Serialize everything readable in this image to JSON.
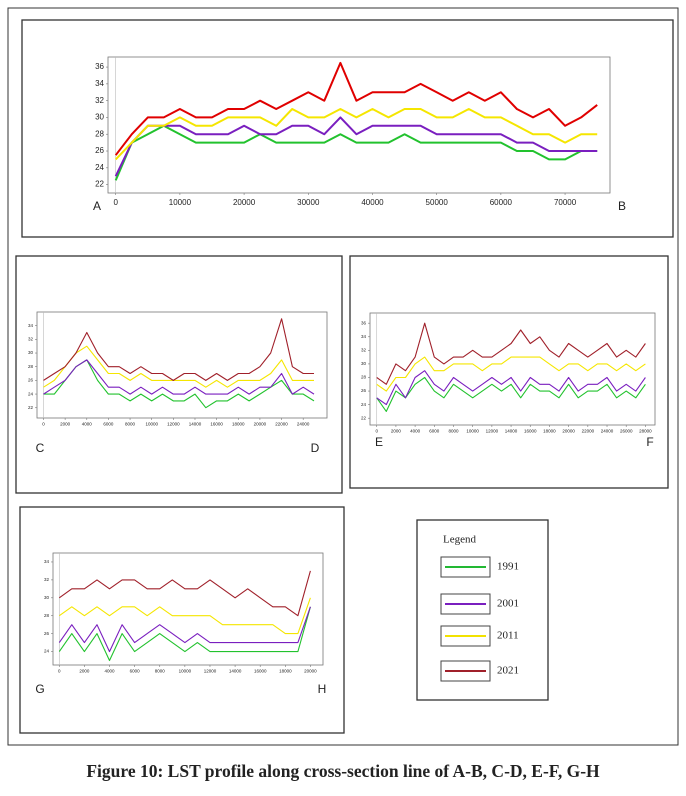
{
  "caption": "Figure 10: LST profile along cross-section line of A-B, C-D, E-F, G-H",
  "legend": {
    "title": "Legend",
    "items": [
      {
        "name": "1991",
        "color": "#22b833"
      },
      {
        "name": "2001",
        "color": "#7a1fbf"
      },
      {
        "name": "2011",
        "color": "#f2e200"
      },
      {
        "name": "2021",
        "color": "#a0202a"
      }
    ]
  },
  "chart_data": [
    {
      "type": "line",
      "start_label": "A",
      "end_label": "B",
      "x": [
        0,
        2500,
        5000,
        7500,
        10000,
        12500,
        15000,
        17500,
        20000,
        22500,
        25000,
        27500,
        30000,
        32500,
        35000,
        37500,
        40000,
        42500,
        45000,
        47500,
        50000,
        52500,
        55000,
        57500,
        60000,
        62500,
        65000,
        67500,
        70000,
        72500,
        75000
      ],
      "xlim": [
        -1200,
        77000
      ],
      "xticks": [
        0,
        10000,
        20000,
        30000,
        40000,
        50000,
        60000,
        70000
      ],
      "ylim": [
        21,
        37.2
      ],
      "yticks": [
        22,
        24,
        26,
        28,
        30,
        32,
        34,
        36
      ],
      "series": [
        {
          "color": "#22c22e",
          "values": [
            22.5,
            27,
            28,
            29,
            28,
            27,
            27,
            27,
            27,
            28,
            27,
            27,
            27,
            27,
            28,
            27,
            27,
            27,
            28,
            27,
            27,
            27,
            27,
            27,
            27,
            26,
            26,
            25,
            25,
            26,
            26
          ]
        },
        {
          "color": "#7a1fbf",
          "values": [
            23,
            27,
            29,
            29,
            29,
            28,
            28,
            28,
            29,
            28,
            28,
            29,
            29,
            28,
            30,
            28,
            29,
            29,
            29,
            29,
            28,
            28,
            28,
            28,
            28,
            27,
            27,
            26,
            26,
            26,
            26
          ]
        },
        {
          "color": "#f5e600",
          "values": [
            25,
            27,
            29,
            29,
            30,
            29,
            29,
            30,
            30,
            30,
            29,
            31,
            30,
            30,
            31,
            30,
            31,
            30,
            31,
            31,
            30,
            30,
            31,
            30,
            30,
            29,
            28,
            28,
            27,
            28,
            28
          ]
        },
        {
          "color": "#e00000",
          "values": [
            25.5,
            28,
            30,
            30,
            31,
            30,
            30,
            31,
            31,
            32,
            31,
            32,
            33,
            32,
            36.5,
            32,
            33,
            33,
            33,
            34,
            33,
            32,
            33,
            32,
            33,
            31,
            30,
            31,
            29,
            30,
            31.5
          ]
        }
      ]
    },
    {
      "type": "line",
      "start_label": "C",
      "end_label": "D",
      "x": [
        0,
        1000,
        2000,
        3000,
        4000,
        5000,
        6000,
        7000,
        8000,
        9000,
        10000,
        11000,
        12000,
        13000,
        14000,
        15000,
        16000,
        17000,
        18000,
        19000,
        20000,
        21000,
        22000,
        23000,
        24000,
        25000
      ],
      "xlim": [
        -600,
        26200
      ],
      "xticks": [
        0,
        2000,
        4000,
        6000,
        8000,
        10000,
        12000,
        14000,
        16000,
        18000,
        20000,
        22000,
        24000
      ],
      "ylim": [
        20.5,
        36
      ],
      "yticks": [
        22,
        24,
        26,
        28,
        30,
        32,
        34
      ],
      "series": [
        {
          "color": "#22c22e",
          "values": [
            24,
            24,
            26,
            28,
            29,
            26,
            24,
            24,
            23,
            24,
            23,
            24,
            23,
            23,
            24,
            22,
            23,
            23,
            24,
            23,
            24,
            25,
            26,
            24,
            24,
            23
          ]
        },
        {
          "color": "#7a1fbf",
          "values": [
            24,
            25,
            26,
            28,
            29,
            27,
            25,
            25,
            24,
            25,
            24,
            25,
            24,
            24,
            25,
            24,
            24,
            24,
            25,
            24,
            25,
            25,
            27,
            24,
            25,
            24
          ]
        },
        {
          "color": "#f5e600",
          "values": [
            25,
            26,
            28,
            30,
            31,
            29,
            27,
            27,
            26,
            27,
            26,
            26,
            26,
            26,
            26,
            25,
            26,
            25,
            26,
            26,
            26,
            27,
            29,
            26,
            26,
            26
          ]
        },
        {
          "color": "#a0202a",
          "values": [
            26,
            27,
            28,
            30,
            33,
            30,
            28,
            28,
            27,
            28,
            27,
            27,
            26,
            27,
            27,
            26,
            27,
            26,
            27,
            27,
            28,
            30,
            35,
            28,
            27,
            27
          ]
        }
      ]
    },
    {
      "type": "line",
      "start_label": "E",
      "end_label": "F",
      "x": [
        0,
        1000,
        2000,
        3000,
        4000,
        5000,
        6000,
        7000,
        8000,
        9000,
        10000,
        11000,
        12000,
        13000,
        14000,
        15000,
        16000,
        17000,
        18000,
        19000,
        20000,
        21000,
        22000,
        23000,
        24000,
        25000,
        26000,
        27000,
        28000
      ],
      "xlim": [
        -700,
        29000
      ],
      "xticks": [
        0,
        2000,
        4000,
        6000,
        8000,
        10000,
        12000,
        14000,
        16000,
        18000,
        20000,
        22000,
        24000,
        26000,
        28000
      ],
      "ylim": [
        21,
        37.5
      ],
      "yticks": [
        22,
        24,
        26,
        28,
        30,
        32,
        34,
        36
      ],
      "series": [
        {
          "color": "#22c22e",
          "values": [
            25,
            23,
            26,
            25,
            27,
            28,
            26,
            25,
            27,
            26,
            25,
            26,
            27,
            26,
            27,
            25,
            27,
            26,
            26,
            25,
            27,
            25,
            26,
            26,
            27,
            25,
            26,
            25,
            27
          ]
        },
        {
          "color": "#7a1fbf",
          "values": [
            25,
            24,
            27,
            25,
            28,
            29,
            27,
            26,
            28,
            27,
            26,
            27,
            28,
            27,
            28,
            26,
            28,
            27,
            27,
            26,
            28,
            26,
            27,
            27,
            28,
            26,
            27,
            26,
            28
          ]
        },
        {
          "color": "#f5e600",
          "values": [
            27,
            26,
            28,
            28,
            30,
            31,
            29,
            29,
            30,
            30,
            30,
            29,
            30,
            30,
            31,
            31,
            31,
            31,
            30,
            29,
            30,
            30,
            29,
            30,
            30,
            29,
            30,
            29,
            30
          ]
        },
        {
          "color": "#a0202a",
          "values": [
            28,
            27,
            30,
            29,
            31,
            36,
            31,
            30,
            31,
            31,
            32,
            31,
            31,
            32,
            33,
            35,
            33,
            34,
            32,
            31,
            33,
            32,
            31,
            32,
            33,
            31,
            32,
            31,
            33
          ]
        }
      ]
    },
    {
      "type": "line",
      "start_label": "G",
      "end_label": "H",
      "x": [
        0,
        1000,
        2000,
        3000,
        4000,
        5000,
        6000,
        7000,
        8000,
        9000,
        10000,
        11000,
        12000,
        13000,
        14000,
        15000,
        16000,
        17000,
        18000,
        19000,
        20000
      ],
      "xlim": [
        -500,
        21000
      ],
      "xticks": [
        0,
        2000,
        4000,
        6000,
        8000,
        10000,
        12000,
        14000,
        16000,
        18000,
        20000
      ],
      "ylim": [
        22.5,
        35
      ],
      "yticks": [
        24,
        26,
        28,
        30,
        32,
        34
      ],
      "series": [
        {
          "color": "#22c22e",
          "values": [
            24,
            26,
            24,
            26,
            23,
            26,
            24,
            25,
            26,
            25,
            24,
            25,
            24,
            24,
            24,
            24,
            24,
            24,
            24,
            24,
            29
          ]
        },
        {
          "color": "#7a1fbf",
          "values": [
            25,
            27,
            25,
            27,
            24,
            27,
            25,
            26,
            27,
            26,
            25,
            26,
            25,
            25,
            25,
            25,
            25,
            25,
            25,
            25,
            29
          ]
        },
        {
          "color": "#f5e600",
          "values": [
            28,
            29,
            28,
            29,
            28,
            29,
            29,
            28,
            29,
            28,
            28,
            28,
            28,
            27,
            27,
            27,
            27,
            27,
            26,
            26,
            30
          ]
        },
        {
          "color": "#a0202a",
          "values": [
            30,
            31,
            31,
            32,
            31,
            32,
            32,
            31,
            31,
            32,
            31,
            31,
            32,
            31,
            30,
            31,
            30,
            29,
            29,
            28,
            33
          ]
        }
      ]
    }
  ]
}
